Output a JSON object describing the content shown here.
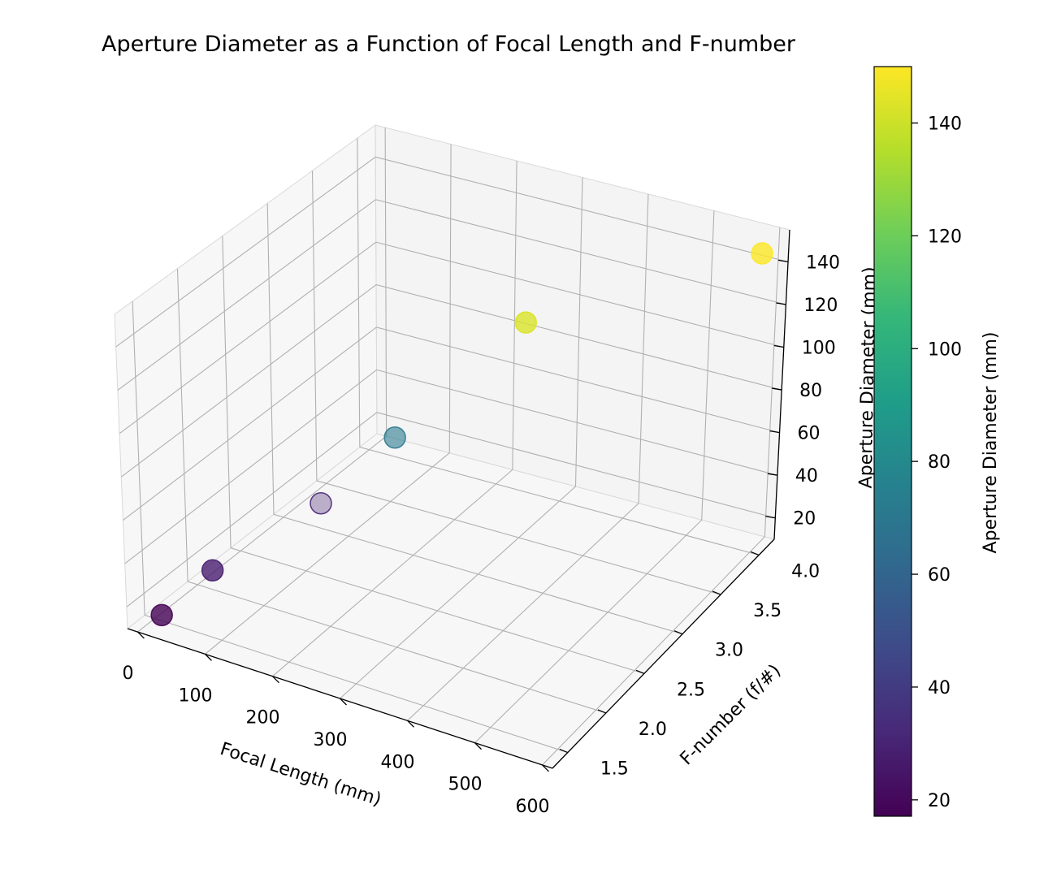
{
  "chart_data": {
    "type": "scatter",
    "title": "Aperture Diameter as a Function of Focal Length and F-number",
    "xlabel": "Focal Length (mm)",
    "ylabel": "F-number (f/#)",
    "zlabel": "Aperture Diameter (mm)",
    "colorbar_label": "Aperture Diameter (mm)",
    "x_ticks": [
      "0",
      "100",
      "200",
      "300",
      "400",
      "500",
      "600"
    ],
    "y_ticks": [
      "1.5",
      "2.0",
      "2.5",
      "3.0",
      "3.5",
      "4.0"
    ],
    "z_ticks": [
      "20",
      "40",
      "60",
      "80",
      "100",
      "120",
      "140"
    ],
    "colorbar_ticks": [
      "20",
      "40",
      "60",
      "80",
      "100",
      "120",
      "140"
    ],
    "xlim": [
      -15,
      615
    ],
    "ylim": [
      1.3,
      4.2
    ],
    "zlim": [
      10,
      155
    ],
    "clim": [
      17.1,
      150
    ],
    "colormap": "viridis",
    "grid": true,
    "points": [
      {
        "x": 24,
        "y": 1.4,
        "z": 17.1
      },
      {
        "x": 50,
        "y": 1.8,
        "z": 27.8
      },
      {
        "x": 85,
        "y": 2.8,
        "z": 30.4
      },
      {
        "x": 200,
        "y": 2.8,
        "z": 71.4
      },
      {
        "x": 400,
        "y": 2.8,
        "z": 142.9
      },
      {
        "x": 600,
        "y": 4.0,
        "z": 150.0
      }
    ]
  }
}
